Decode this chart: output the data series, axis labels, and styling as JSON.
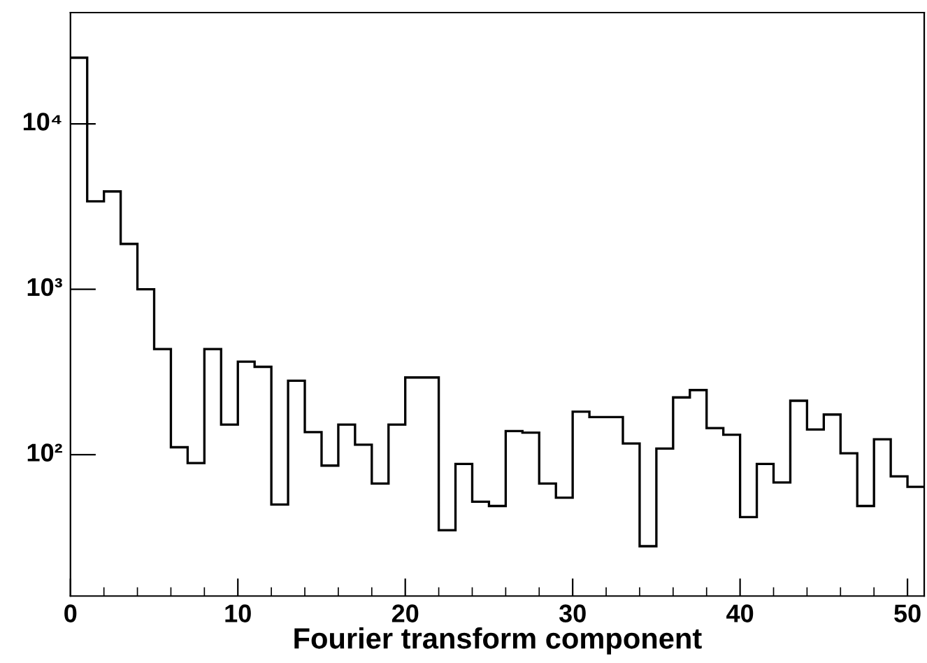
{
  "chart_data": {
    "type": "histogram",
    "xlabel": "Fourier transform component",
    "bins": [
      0,
      1,
      2,
      3,
      4,
      5,
      6,
      7,
      8,
      9,
      10,
      11,
      12,
      13,
      14,
      15,
      16,
      17,
      18,
      19,
      20,
      21,
      22,
      23,
      24,
      25,
      26,
      27,
      28,
      29,
      30,
      31,
      32,
      33,
      34,
      35,
      36,
      37,
      38,
      39,
      40,
      41,
      42,
      43,
      44,
      45,
      46,
      47,
      48,
      49,
      50,
      51
    ],
    "values": [
      25100,
      3400,
      3900,
      1880,
      1000,
      435,
      111,
      89,
      435,
      152,
      365,
      340,
      50,
      280,
      137,
      86,
      152,
      115,
      67,
      152,
      293,
      293,
      35,
      88,
      52,
      49,
      139,
      136,
      67,
      55,
      182,
      169,
      169,
      117,
      28,
      109,
      222,
      246,
      145,
      132,
      42,
      88,
      68,
      212,
      142,
      175,
      102,
      49,
      124,
      74,
      64
    ],
    "color": "#000000",
    "log": "y",
    "grid": false,
    "xlim": [
      0,
      51
    ],
    "ylim": [
      14,
      47000
    ],
    "xticks": [
      0,
      {
        "value": 2,
        "label": null
      },
      {
        "value": 4,
        "label": null
      },
      {
        "value": 6,
        "label": null
      },
      {
        "value": 8,
        "label": null
      },
      10,
      {
        "value": 12,
        "label": null
      },
      {
        "value": 14,
        "label": null
      },
      {
        "value": 16,
        "label": null
      },
      {
        "value": 18,
        "label": null
      },
      20,
      {
        "value": 22,
        "label": null
      },
      {
        "value": 24,
        "label": null
      },
      {
        "value": 26,
        "label": null
      },
      {
        "value": 28,
        "label": null
      },
      30,
      {
        "value": 32,
        "label": null
      },
      {
        "value": 34,
        "label": null
      },
      {
        "value": 36,
        "label": null
      },
      {
        "value": 38,
        "label": null
      },
      40,
      {
        "value": 42,
        "label": null
      },
      {
        "value": 44,
        "label": null
      },
      {
        "value": 46,
        "label": null
      },
      {
        "value": 48,
        "label": null
      },
      50
    ],
    "yticks": [
      {
        "value": 100,
        "label": "10²"
      },
      {
        "value": 1000,
        "label": "10³"
      },
      {
        "value": 10000,
        "label": "10⁴"
      }
    ]
  }
}
